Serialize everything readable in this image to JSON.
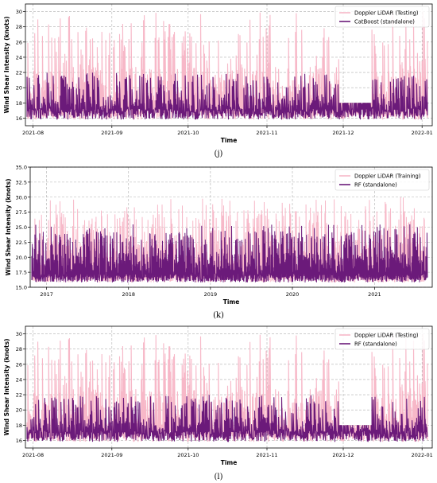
{
  "colors": {
    "testing": "#f7b8c8",
    "model": "#6b1a7a",
    "grid": "#b0b0b0"
  },
  "chart_data": [
    {
      "type": "line",
      "caption": "(j)",
      "xlabel": "Time",
      "ylabel": "Wind Shear Intensity (knots)",
      "x_range": [
        "2021-07-29",
        "2022-01-05"
      ],
      "x_ticks": [
        "2021-08",
        "2021-09",
        "2021-10",
        "2021-11",
        "2021-12",
        "2022-01"
      ],
      "x_tick_dates": [
        "2021-08-01",
        "2021-09-01",
        "2021-10-01",
        "2021-11-01",
        "2021-12-01",
        "2022-01-01"
      ],
      "ylim": [
        15,
        31
      ],
      "y_ticks": [
        16,
        18,
        20,
        22,
        24,
        26,
        28,
        30
      ],
      "grid": true,
      "legend_position": "top-right",
      "series": [
        {
          "name": "Doppler LiDAR (Testing)",
          "color": "#f7b8c8",
          "width": 1.1,
          "maxv": 30,
          "seed": 11,
          "rough_range": [
            15,
            30
          ],
          "description": "dense spiky pink signal up to 30 knots"
        },
        {
          "name": "CatBoost (standalone)",
          "color": "#6b1a7a",
          "width": 1.1,
          "maxv": 22,
          "seed": 29,
          "rough_range": [
            15,
            22
          ],
          "description": "dense purple prediction mostly 15-20 knots"
        }
      ]
    },
    {
      "type": "line",
      "caption": "(k)",
      "xlabel": "Time",
      "ylabel": "Wind Shear Intensity (knots)",
      "x_range": [
        "2016-10-20",
        "2021-09-15"
      ],
      "x_ticks": [
        "2017",
        "2018",
        "2019",
        "2020",
        "2021"
      ],
      "x_tick_dates": [
        "2017-01-01",
        "2018-01-01",
        "2019-01-01",
        "2020-01-01",
        "2021-01-01"
      ],
      "ylim": [
        15,
        35
      ],
      "y_ticks": [
        "15.0",
        "17.5",
        "20.0",
        "22.5",
        "25.0",
        "27.5",
        "30.0",
        "32.5",
        "35.0"
      ],
      "grid": true,
      "legend_position": "top-right",
      "series": [
        {
          "name": "Doppler LiDAR (Training)",
          "color": "#f7b8c8",
          "width": 1.0,
          "maxv": 30,
          "seed": 53,
          "rough_range": [
            15,
            30
          ],
          "description": "dense pink band, frequent peaks near 30 knots"
        },
        {
          "name": "RF (standalone)",
          "color": "#6b1a7a",
          "width": 1.0,
          "maxv": 25.5,
          "seed": 71,
          "rough_range": [
            15,
            25.5
          ],
          "description": "dense purple band, mostly 19-22 knots"
        }
      ]
    },
    {
      "type": "line",
      "caption": "(l)",
      "xlabel": "Time",
      "ylabel": "Wind Shear Intensity (knots)",
      "x_range": [
        "2021-07-29",
        "2022-01-05"
      ],
      "x_ticks": [
        "2021-08",
        "2021-09",
        "2021-10",
        "2021-11",
        "2021-12",
        "2022-01"
      ],
      "x_tick_dates": [
        "2021-08-01",
        "2021-09-01",
        "2021-10-01",
        "2021-11-01",
        "2021-12-01",
        "2022-01-01"
      ],
      "ylim": [
        15,
        31
      ],
      "y_ticks": [
        16,
        18,
        20,
        22,
        24,
        26,
        28,
        30
      ],
      "grid": true,
      "legend_position": "top-right",
      "series": [
        {
          "name": "Doppler LiDAR (Testing)",
          "color": "#f7b8c8",
          "width": 1.1,
          "maxv": 30,
          "seed": 11,
          "rough_range": [
            15,
            30
          ],
          "description": "dense spiky pink signal up to 30 knots"
        },
        {
          "name": "RF (standalone)",
          "color": "#6b1a7a",
          "width": 1.1,
          "maxv": 22,
          "seed": 37,
          "rough_range": [
            15,
            22
          ],
          "description": "dense purple prediction mostly 15-21 knots"
        }
      ]
    }
  ]
}
